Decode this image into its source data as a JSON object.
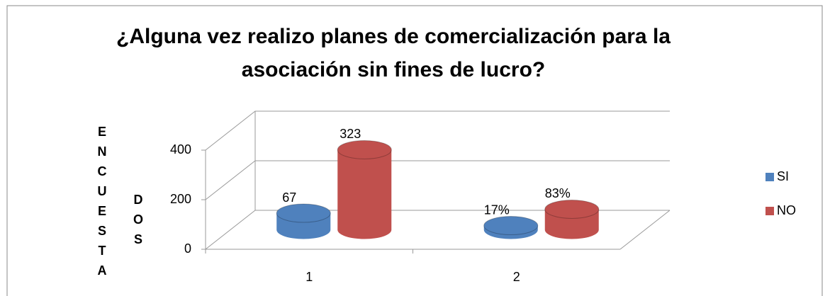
{
  "chart_data": {
    "type": "bar3d",
    "title": "¿Alguna vez realizo planes de comercialización para la asociación sin fines de lucro?",
    "y_label": [
      "ENCUESTA",
      "DOS"
    ],
    "categories": [
      "1",
      "2"
    ],
    "series": [
      {
        "name": "SI",
        "color": "#4f81bd",
        "values": [
          67,
          17
        ],
        "value_labels": [
          "67",
          "17%"
        ]
      },
      {
        "name": "NO",
        "color": "#c0504d",
        "values": [
          323,
          83
        ],
        "value_labels": [
          "323",
          "83%"
        ]
      }
    ],
    "ylim": [
      0,
      400
    ],
    "yticks": [
      0,
      200,
      400
    ],
    "grid": true,
    "legend": "right"
  }
}
